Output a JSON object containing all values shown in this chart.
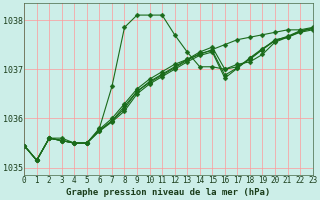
{
  "title": "Graphe pression niveau de la mer (hPa)",
  "bg_color": "#cceee8",
  "grid_color": "#ff9999",
  "line_color": "#1a6b1a",
  "series": [
    [
      1035.45,
      1035.15,
      1035.6,
      1035.6,
      1035.5,
      1035.5,
      1035.8,
      1036.65,
      1037.85,
      1038.1,
      1038.1,
      1038.1,
      1037.7,
      1037.35,
      1037.05,
      1037.05,
      1037.0,
      1037.1,
      1037.15,
      1037.3,
      1037.55,
      1037.65,
      1037.75,
      1037.8
    ],
    [
      1035.45,
      1035.15,
      1035.6,
      1035.55,
      1035.5,
      1035.5,
      1035.75,
      1035.95,
      1036.25,
      1036.55,
      1036.75,
      1036.9,
      1037.05,
      1037.2,
      1037.3,
      1037.4,
      1037.5,
      1037.6,
      1037.65,
      1037.7,
      1037.75,
      1037.8,
      1037.8,
      1037.85
    ],
    [
      1035.45,
      1035.15,
      1035.6,
      1035.55,
      1035.5,
      1035.5,
      1035.78,
      1036.0,
      1036.3,
      1036.6,
      1036.8,
      1036.95,
      1037.1,
      1037.2,
      1037.35,
      1037.45,
      1037.0,
      1037.05,
      1037.2,
      1037.4,
      1037.6,
      1037.65,
      1037.77,
      1037.83
    ],
    [
      1035.45,
      1035.15,
      1035.6,
      1035.55,
      1035.5,
      1035.5,
      1035.76,
      1035.95,
      1036.2,
      1036.55,
      1036.73,
      1036.88,
      1037.03,
      1037.18,
      1037.32,
      1037.38,
      1036.88,
      1037.03,
      1037.23,
      1037.42,
      1037.58,
      1037.65,
      1037.77,
      1037.83
    ],
    [
      1035.45,
      1035.15,
      1035.6,
      1035.55,
      1035.5,
      1035.5,
      1035.74,
      1035.93,
      1036.15,
      1036.5,
      1036.7,
      1036.85,
      1037.0,
      1037.15,
      1037.28,
      1037.35,
      1036.82,
      1037.02,
      1037.22,
      1037.4,
      1037.58,
      1037.67,
      1037.78,
      1037.83
    ]
  ],
  "x_ticks": [
    0,
    1,
    2,
    3,
    4,
    5,
    6,
    7,
    8,
    9,
    10,
    11,
    12,
    13,
    14,
    15,
    16,
    17,
    18,
    19,
    20,
    21,
    22,
    23
  ],
  "y_ticks": [
    1035,
    1036,
    1037,
    1038
  ],
  "xlim": [
    0,
    23
  ],
  "ylim": [
    1034.85,
    1038.35
  ],
  "marker_size": 2.5,
  "linewidth": 0.8,
  "tick_fontsize": 5.5,
  "label_fontsize": 6.5
}
